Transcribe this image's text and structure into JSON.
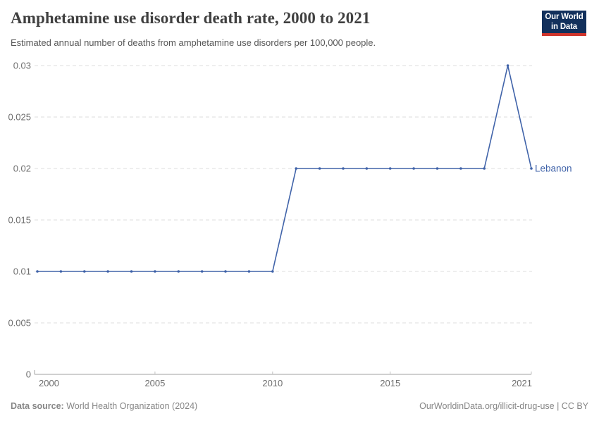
{
  "header": {
    "title": "Amphetamine use disorder death rate, 2000 to 2021",
    "subtitle": "Estimated annual number of deaths from amphetamine use disorders per 100,000 people.",
    "logo": {
      "line1": "Our World",
      "line2": "in Data",
      "bg_color": "#12305c",
      "bar_color": "#d0352c"
    }
  },
  "chart_data": {
    "type": "line",
    "title": "Amphetamine use disorder death rate, 2000 to 2021",
    "xlabel": "",
    "ylabel": "",
    "xlim": [
      2000,
      2021
    ],
    "ylim": [
      0,
      0.03
    ],
    "grid": "horizontal-dashed",
    "legend_position": "end-of-line-label",
    "x": [
      2000,
      2001,
      2002,
      2003,
      2004,
      2005,
      2006,
      2007,
      2008,
      2009,
      2010,
      2011,
      2012,
      2013,
      2014,
      2015,
      2016,
      2017,
      2018,
      2019,
      2020,
      2021
    ],
    "series": [
      {
        "name": "Lebanon",
        "color": "#4063a9",
        "values": [
          0.01,
          0.01,
          0.01,
          0.01,
          0.01,
          0.01,
          0.01,
          0.01,
          0.01,
          0.01,
          0.01,
          0.02,
          0.02,
          0.02,
          0.02,
          0.02,
          0.02,
          0.02,
          0.02,
          0.02,
          0.03,
          0.02
        ]
      }
    ],
    "x_ticks": [
      {
        "value": 2000,
        "label": "2000"
      },
      {
        "value": 2005,
        "label": "2005"
      },
      {
        "value": 2010,
        "label": "2010"
      },
      {
        "value": 2015,
        "label": "2015"
      },
      {
        "value": 2021,
        "label": "2021"
      }
    ],
    "y_ticks": [
      {
        "value": 0,
        "label": "0"
      },
      {
        "value": 0.005,
        "label": "0.005"
      },
      {
        "value": 0.01,
        "label": "0.01"
      },
      {
        "value": 0.015,
        "label": "0.015"
      },
      {
        "value": 0.02,
        "label": "0.02"
      },
      {
        "value": 0.025,
        "label": "0.025"
      },
      {
        "value": 0.03,
        "label": "0.03"
      }
    ]
  },
  "footer": {
    "source_label": "Data source:",
    "source_value": "World Health Organization (2024)",
    "license": "OurWorldinData.org/illicit-drug-use | CC BY"
  }
}
